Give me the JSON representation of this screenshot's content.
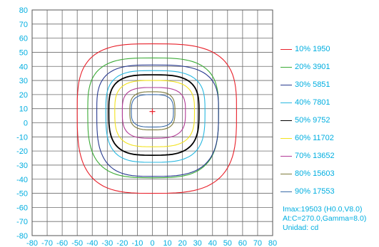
{
  "chart_data": {
    "type": "line",
    "x_ticks": [
      -80,
      -70,
      -60,
      -50,
      -40,
      -30,
      -20,
      -10,
      0,
      10,
      20,
      30,
      40,
      50,
      60,
      70,
      80
    ],
    "y_ticks": [
      80,
      70,
      60,
      50,
      40,
      30,
      20,
      10,
      0,
      -10,
      -20,
      -30,
      -40,
      -50,
      -60,
      -70,
      -80
    ],
    "xlim": [
      -80,
      80
    ],
    "ylim": [
      -80,
      80
    ],
    "grid": true,
    "center": {
      "x": 0,
      "y": 8
    },
    "series": [
      {
        "name": "10% 1950",
        "color": "#e8202a",
        "extent": {
          "left": -50,
          "right": 56,
          "top": 56,
          "bottom": -50
        }
      },
      {
        "name": "20% 3901",
        "color": "#3aaa35",
        "extent": {
          "left": -43,
          "right": 44,
          "top": 46,
          "bottom": -39
        }
      },
      {
        "name": "30% 5851",
        "color": "#27398f",
        "extent": {
          "left": -37,
          "right": 44,
          "top": 41,
          "bottom": -38
        }
      },
      {
        "name": "40% 7801",
        "color": "#29b8e0",
        "extent": {
          "left": -31,
          "right": 35,
          "top": 37,
          "bottom": -28
        }
      },
      {
        "name": "50% 9752",
        "color": "#000000",
        "extent": {
          "left": -29,
          "right": 31,
          "top": 34,
          "bottom": -23
        }
      },
      {
        "name": "60% 11702",
        "color": "#f2e21c",
        "extent": {
          "left": -25,
          "right": 28,
          "top": 30,
          "bottom": -17
        }
      },
      {
        "name": "70% 13652",
        "color": "#b23a96",
        "extent": {
          "left": -20,
          "right": 22,
          "top": 25,
          "bottom": -11
        }
      },
      {
        "name": "80% 15603",
        "color": "#7c7a3a",
        "extent": {
          "left": -15,
          "right": 15,
          "top": 22,
          "bottom": -5
        }
      },
      {
        "name": "90% 17553",
        "color": "#3a6ba8",
        "extent": {
          "left": -14,
          "right": 14,
          "top": 20,
          "bottom": -3
        }
      }
    ]
  },
  "info": {
    "imax": "Imax:19503 (H0.0,V8.0)",
    "at": "At:C=270.0,Gamma=8.0)",
    "unit": "Unidad: cd"
  },
  "colors": {
    "axis_text": "#00aee0",
    "grid": "#6b6b6b",
    "center_marker": "#e8202a"
  }
}
